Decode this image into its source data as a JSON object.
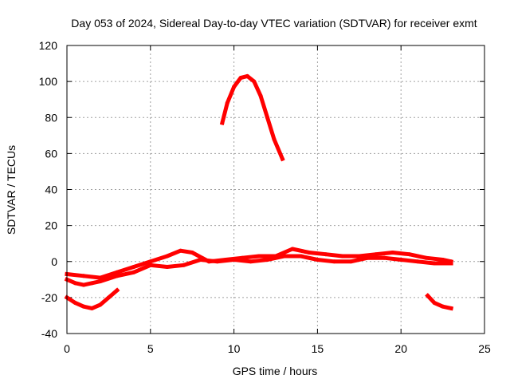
{
  "chart_data": {
    "type": "line",
    "title": "Day 053 of 2024, Sidereal Day-to-day VTEC variation (SDTVAR) for receiver exmt",
    "xlabel": "GPS time / hours",
    "ylabel": "SDTVAR / TECUs",
    "xlim": [
      0,
      25
    ],
    "ylim": [
      -40,
      120
    ],
    "xticks": [
      0,
      5,
      10,
      15,
      20,
      25
    ],
    "yticks": [
      -40,
      -20,
      0,
      20,
      40,
      60,
      80,
      100,
      120
    ],
    "grid": true,
    "series_color": "#ff0000",
    "series": [
      {
        "name": "main-band-upper",
        "x": [
          0,
          1,
          2,
          3,
          4,
          5,
          6,
          6.8,
          7.5,
          8.5,
          9.5,
          10.5,
          11.5,
          12.5,
          13.5,
          14.5,
          15.5,
          16.5,
          17.5,
          18.5,
          19.5,
          20.5,
          21.5,
          22.5,
          23
        ],
        "y": [
          -7,
          -8,
          -9,
          -6,
          -3,
          0,
          3,
          6,
          5,
          0,
          1,
          2,
          3,
          3,
          7,
          5,
          4,
          3,
          3,
          4,
          5,
          4,
          2,
          1,
          0
        ]
      },
      {
        "name": "main-band-lower",
        "x": [
          0,
          0.5,
          1,
          1.5,
          2,
          3,
          4,
          5,
          6,
          7,
          8,
          9,
          10,
          11,
          12,
          13,
          14,
          15,
          16,
          17,
          18,
          19,
          20,
          21,
          22,
          23
        ],
        "y": [
          -10,
          -12,
          -13,
          -12,
          -11,
          -8,
          -6,
          -2,
          -3,
          -2,
          1,
          0,
          1,
          0,
          1,
          3,
          3,
          1,
          0,
          0,
          2,
          2,
          1,
          0,
          -1,
          -1
        ]
      },
      {
        "name": "evening-arc",
        "x": [
          0,
          0.5,
          1,
          1.5,
          2,
          2.5,
          3
        ],
        "y": [
          -20,
          -23,
          -25,
          -26,
          -24,
          -20,
          -16
        ]
      },
      {
        "name": "midday-peak",
        "x": [
          9.3,
          9.6,
          10,
          10.4,
          10.8,
          11.2,
          11.6,
          12,
          12.4,
          12.9
        ],
        "y": [
          77,
          88,
          97,
          102,
          103,
          100,
          92,
          80,
          68,
          57
        ]
      },
      {
        "name": "late-segment",
        "x": [
          21.6,
          22,
          22.5,
          23
        ],
        "y": [
          -19,
          -23,
          -25,
          -26
        ]
      }
    ]
  }
}
